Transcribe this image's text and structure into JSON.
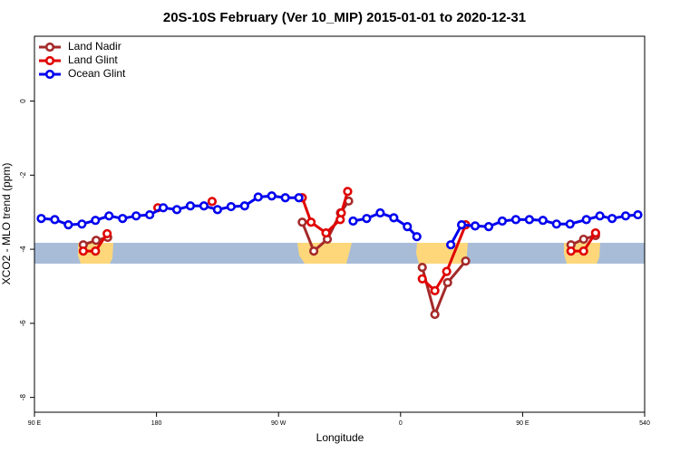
{
  "chart_data": {
    "type": "line",
    "title": "20S-10S February (Ver 10_MIP)   2015-01-01 to 2020-12-31",
    "x_label": "Longitude",
    "y_label": "XCO2 - MLO trend (ppm)",
    "xlim": [
      90,
      540
    ],
    "ylim": [
      -8.4,
      1.75
    ],
    "xticks": [
      {
        "value": 90,
        "label": "90 E"
      },
      180,
      {
        "value": 270,
        "label": "90 W"
      },
      {
        "value": 360,
        "label": "0"
      },
      {
        "value": 450,
        "label": "90 E"
      },
      540
    ],
    "yticks": [
      0,
      -2,
      -4,
      -6,
      -8
    ],
    "legend": "top-left",
    "series": [
      {
        "name": "Land Nadir",
        "color": "#a52a2a",
        "x": [
          126,
          135.5,
          144,
          null,
          287.5,
          296,
          306,
          315.7,
          321.7,
          null,
          376,
          385.3,
          394.7,
          408,
          null,
          485.7,
          495,
          503.8
        ],
        "values": [
          -3.88,
          -3.76,
          -3.68,
          null,
          -3.27,
          -4.05,
          -3.73,
          -3.02,
          -2.7,
          null,
          -4.49,
          -5.76,
          -4.9,
          -4.32,
          null,
          -3.88,
          -3.73,
          -3.63
        ]
      },
      {
        "name": "Land Glint",
        "color": "#e00000",
        "x": [
          126,
          135,
          143.6,
          null,
          181,
          null,
          221,
          null,
          287.5,
          294,
          305,
          315.5,
          316.3,
          321,
          null,
          376,
          385.3,
          394,
          408,
          null,
          485.7,
          495,
          503.8
        ],
        "values": [
          -4.05,
          -4.05,
          -3.58,
          null,
          -2.88,
          null,
          -2.71,
          null,
          -2.61,
          -3.27,
          -3.56,
          -3.2,
          -3.02,
          -2.44,
          null,
          -4.8,
          -5.12,
          -4.6,
          -3.34,
          null,
          -4.05,
          -4.05,
          -3.56
        ]
      },
      {
        "name": "Ocean Glint",
        "color": "#0000ee",
        "x": [
          95,
          105,
          115,
          125,
          135,
          145,
          155,
          165,
          175,
          185,
          195,
          205,
          215,
          225,
          235,
          245,
          255,
          265,
          275,
          285,
          null,
          325,
          335,
          345,
          355,
          365,
          372,
          null,
          397,
          405,
          415,
          425,
          435,
          445,
          455,
          465,
          475,
          485,
          497,
          507,
          516,
          526,
          535
        ],
        "values": [
          -3.17,
          -3.2,
          -3.34,
          -3.32,
          -3.22,
          -3.1,
          -3.17,
          -3.1,
          -3.07,
          -2.88,
          -2.93,
          -2.83,
          -2.83,
          -2.93,
          -2.85,
          -2.83,
          -2.59,
          -2.56,
          -2.61,
          -2.61,
          null,
          -3.24,
          -3.17,
          -3.02,
          -3.15,
          -3.39,
          -3.66,
          null,
          -3.88,
          -3.34,
          -3.37,
          -3.39,
          -3.24,
          -3.2,
          -3.2,
          -3.22,
          -3.32,
          -3.32,
          -3.2,
          -3.1,
          -3.17,
          -3.1,
          -3.07
        ]
      }
    ]
  }
}
